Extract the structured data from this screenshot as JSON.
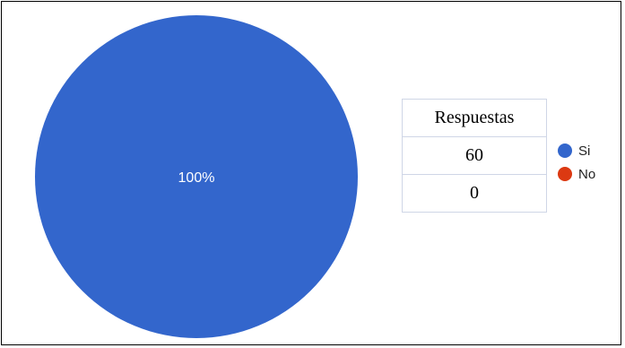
{
  "chart_data": {
    "type": "pie",
    "categories": [
      "Si",
      "No"
    ],
    "values": [
      100,
      0
    ],
    "slice_labels": [
      "100%",
      ""
    ],
    "colors": [
      "#3366cc",
      "#dc3912"
    ],
    "legend_placement": "right"
  },
  "table": {
    "header": "Respuestas",
    "rows": [
      "60",
      "0"
    ]
  },
  "legend": {
    "items": [
      {
        "label": "Si",
        "color": "#3366cc"
      },
      {
        "label": "No",
        "color": "#dc3912"
      }
    ]
  }
}
